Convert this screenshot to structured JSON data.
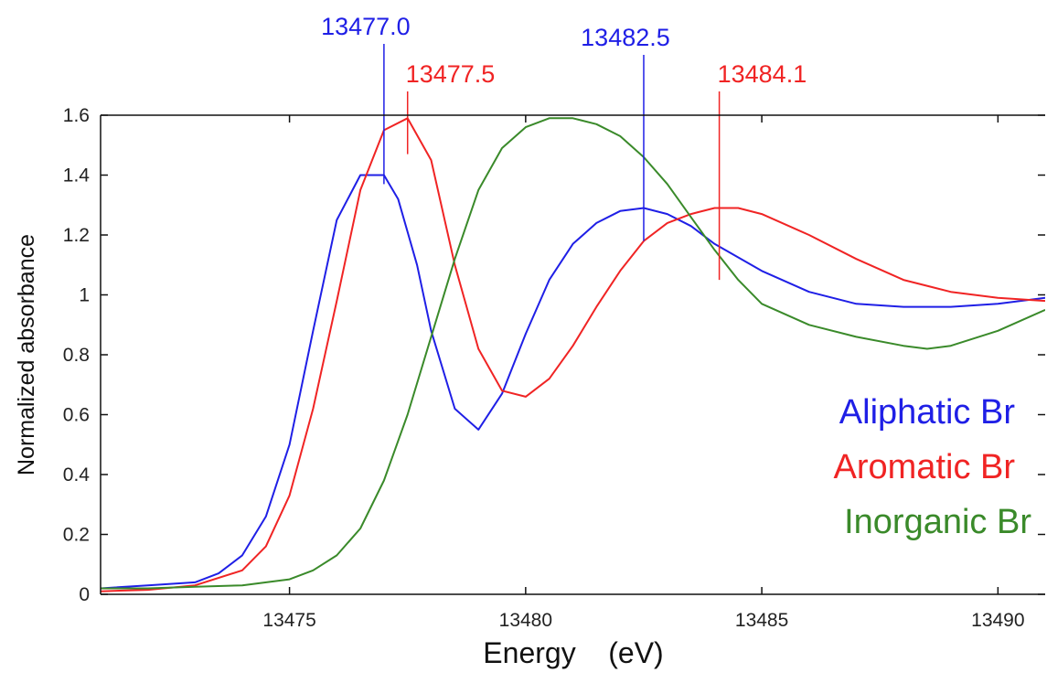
{
  "chart_data": {
    "type": "line",
    "title": "",
    "xlabel": "Energy    (eV)",
    "ylabel": "Normalized absorbance",
    "xlim": [
      13471,
      13491
    ],
    "ylim": [
      0,
      1.6
    ],
    "x_ticks": [
      13475,
      13480,
      13485,
      13490
    ],
    "x_tick_labels": [
      "13475",
      "13480",
      "13485",
      "13490"
    ],
    "y_ticks": [
      0,
      0.2,
      0.4,
      0.6,
      0.8,
      1,
      1.2,
      1.4,
      1.6
    ],
    "y_tick_labels": [
      "0",
      "0.2",
      "0.4",
      "0.6",
      "0.8",
      "1",
      "1.2",
      "1.4",
      "1.6"
    ],
    "grid": false,
    "legend_placement": "bottom-right",
    "series": [
      {
        "name": "Aliphatic Br",
        "color": "#1f1fe6",
        "x": [
          13471,
          13472,
          13473,
          13473.5,
          13474,
          13474.5,
          13475,
          13475.5,
          13476,
          13476.5,
          13477,
          13477.3,
          13477.7,
          13478,
          13478.5,
          13479,
          13479.5,
          13480,
          13480.5,
          13481,
          13481.5,
          13482,
          13482.5,
          13483,
          13483.5,
          13484,
          13485,
          13486,
          13487,
          13488,
          13489,
          13490,
          13491
        ],
        "y": [
          0.02,
          0.03,
          0.04,
          0.07,
          0.13,
          0.26,
          0.5,
          0.88,
          1.25,
          1.4,
          1.4,
          1.32,
          1.1,
          0.88,
          0.62,
          0.55,
          0.67,
          0.87,
          1.05,
          1.17,
          1.24,
          1.28,
          1.29,
          1.27,
          1.23,
          1.17,
          1.08,
          1.01,
          0.97,
          0.96,
          0.96,
          0.97,
          0.99
        ]
      },
      {
        "name": "Aromatic Br",
        "color": "#f02424",
        "x": [
          13471,
          13472,
          13473,
          13474,
          13474.5,
          13475,
          13475.5,
          13476,
          13476.5,
          13477,
          13477.5,
          13478,
          13478.5,
          13479,
          13479.5,
          13480,
          13480.5,
          13481,
          13481.5,
          13482,
          13482.5,
          13483,
          13483.5,
          13484,
          13484.5,
          13485,
          13486,
          13487,
          13488,
          13489,
          13490,
          13491
        ],
        "y": [
          0.01,
          0.015,
          0.03,
          0.08,
          0.16,
          0.33,
          0.62,
          0.98,
          1.35,
          1.55,
          1.59,
          1.45,
          1.1,
          0.82,
          0.68,
          0.66,
          0.72,
          0.83,
          0.96,
          1.08,
          1.18,
          1.24,
          1.27,
          1.29,
          1.29,
          1.27,
          1.2,
          1.12,
          1.05,
          1.01,
          0.99,
          0.98
        ]
      },
      {
        "name": "Inorganic Br",
        "color": "#3a8a2a",
        "x": [
          13471,
          13472,
          13473,
          13474,
          13475,
          13475.5,
          13476,
          13476.5,
          13477,
          13477.5,
          13478,
          13478.5,
          13479,
          13479.5,
          13480,
          13480.5,
          13481,
          13481.5,
          13482,
          13482.5,
          13483,
          13483.5,
          13484,
          13484.5,
          13485,
          13486,
          13487,
          13488,
          13488.5,
          13489,
          13490,
          13491
        ],
        "y": [
          0.02,
          0.02,
          0.025,
          0.03,
          0.05,
          0.08,
          0.13,
          0.22,
          0.38,
          0.6,
          0.86,
          1.12,
          1.35,
          1.49,
          1.56,
          1.59,
          1.59,
          1.57,
          1.53,
          1.46,
          1.37,
          1.26,
          1.15,
          1.05,
          0.97,
          0.9,
          0.86,
          0.83,
          0.82,
          0.83,
          0.88,
          0.95
        ]
      }
    ],
    "annotations": [
      {
        "label": "13477.0",
        "x": 13477.0,
        "color": "#1f1fe6",
        "y_from": 1.37,
        "y_to": 1.7
      },
      {
        "label": "13477.5",
        "x": 13477.5,
        "color": "#f02424",
        "y_from": 1.47,
        "y_to": 1.7
      },
      {
        "label": "13482.5",
        "x": 13482.5,
        "color": "#1f1fe6",
        "y_from": 1.18,
        "y_to": 1.7
      },
      {
        "label": "13484.1",
        "x": 13484.1,
        "color": "#f02424",
        "y_from": 1.05,
        "y_to": 1.7
      }
    ]
  }
}
